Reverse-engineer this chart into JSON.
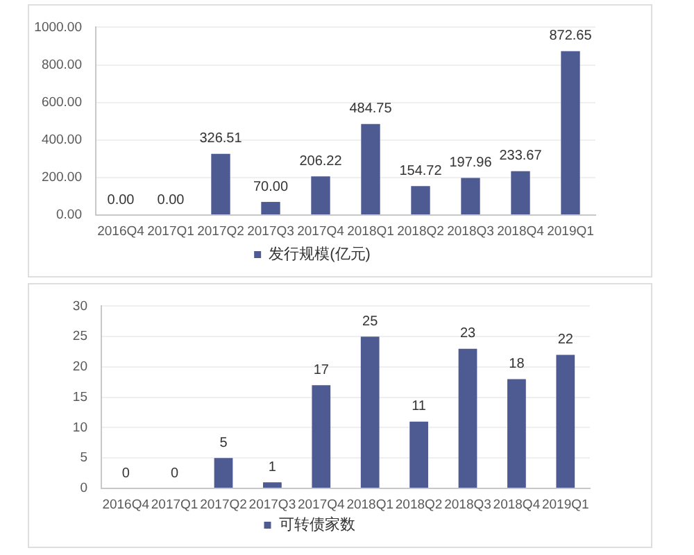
{
  "chart_data": [
    {
      "type": "bar",
      "categories": [
        "2016Q4",
        "2017Q1",
        "2017Q2",
        "2017Q3",
        "2017Q4",
        "2018Q1",
        "2018Q2",
        "2018Q3",
        "2018Q4",
        "2019Q1"
      ],
      "series": [
        {
          "name": "发行规模(亿元)",
          "color": "#4e5a92",
          "values": [
            0,
            0,
            326.51,
            70,
            206.22,
            484.75,
            154.72,
            197.96,
            233.67,
            872.65
          ],
          "value_labels": [
            "0.00",
            "0.00",
            "326.51",
            "70.00",
            "206.22",
            "484.75",
            "154.72",
            "197.96",
            "233.67",
            "872.65"
          ]
        }
      ],
      "ylim": [
        0,
        1000
      ],
      "yticks": [
        {
          "value": 0,
          "label": "0.00"
        },
        {
          "value": 200,
          "label": "200.00"
        },
        {
          "value": 400,
          "label": "400.00"
        },
        {
          "value": 600,
          "label": "600.00"
        },
        {
          "value": 800,
          "label": "800.00"
        },
        {
          "value": 1000,
          "label": "1000.00"
        }
      ],
      "grid": "y",
      "legend": "bottom"
    },
    {
      "type": "bar",
      "categories": [
        "2016Q4",
        "2017Q1",
        "2017Q2",
        "2017Q3",
        "2017Q4",
        "2018Q1",
        "2018Q2",
        "2018Q3",
        "2018Q4",
        "2019Q1"
      ],
      "series": [
        {
          "name": "可转债家数",
          "color": "#4e5a92",
          "values": [
            0,
            0,
            5,
            1,
            17,
            25,
            11,
            23,
            18,
            22
          ]
        }
      ],
      "ylim": [
        0,
        30
      ],
      "yticks": [
        0,
        5,
        10,
        15,
        20,
        25,
        30
      ],
      "grid": "y",
      "legend": "bottom",
      "data_labels": true
    }
  ]
}
